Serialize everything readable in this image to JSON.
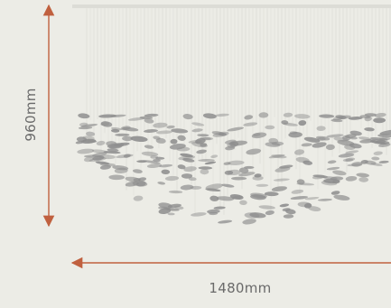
{
  "dimensions": {
    "height_label": "960mm",
    "width_label": "1480mm"
  },
  "colors": {
    "background": "#ecece6",
    "dimension_arrow": "#c0603f",
    "label_text": "#6a6a6a",
    "canopy": "#dcdcd6",
    "suspension_wires": "#d8d8d2",
    "leaf_clusters": "#8e8e8e"
  },
  "illustration": {
    "subject": "chandelier-with-suspended-leaf-clusters"
  }
}
